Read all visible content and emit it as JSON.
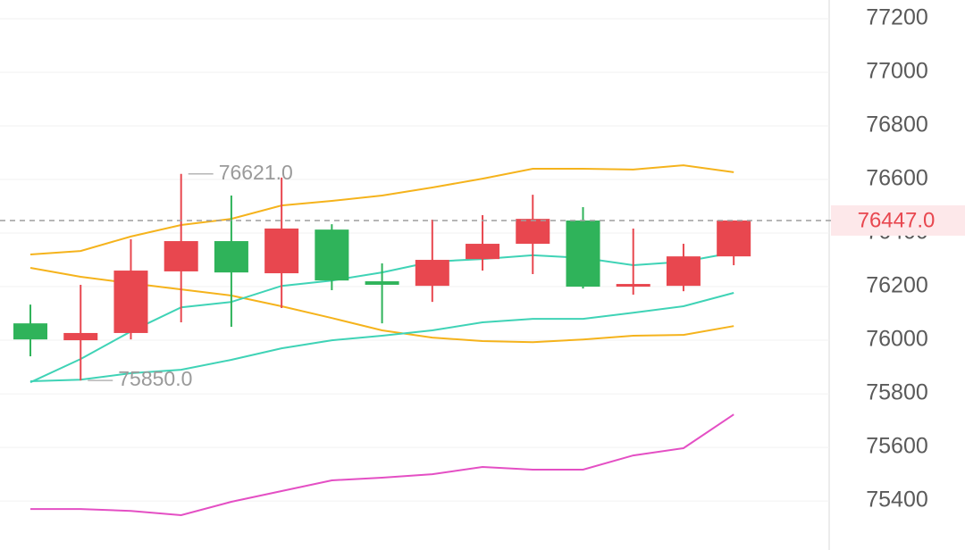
{
  "chart_data": {
    "type": "candlestick",
    "x": [
      1,
      2,
      3,
      4,
      5,
      6,
      7,
      8,
      9,
      10,
      11,
      12,
      13,
      14,
      15
    ],
    "xlim": [
      0.395,
      16.9
    ],
    "open": [
      76063,
      76000,
      76027,
      76257,
      76370,
      76250,
      76413,
      76220,
      76203,
      76303,
      76360,
      76447,
      76200,
      76203,
      76313
    ],
    "high": [
      76133,
      76207,
      76377,
      76621,
      76540,
      76607,
      76433,
      76287,
      76450,
      76467,
      76543,
      76497,
      76417,
      76360,
      76447
    ],
    "low": [
      75940,
      75850,
      76003,
      76067,
      76050,
      76120,
      76187,
      76063,
      76143,
      76260,
      76247,
      76193,
      76170,
      76183,
      76280
    ],
    "close": [
      76003,
      76027,
      76260,
      76370,
      76253,
      76417,
      76223,
      76207,
      76300,
      76360,
      76453,
      76200,
      76210,
      76313,
      76447
    ],
    "up_color": "#e8474f",
    "down_color": "#2fb35a",
    "series": [
      {
        "color": "#f5b31c",
        "values": [
          76320,
          76333,
          76387,
          76430,
          76453,
          76503,
          76520,
          76540,
          76570,
          76603,
          76640,
          76640,
          76637,
          76653,
          76627
        ]
      },
      {
        "color": "#f5b31c",
        "values": [
          76270,
          76237,
          76213,
          76190,
          76167,
          76127,
          76083,
          76037,
          76010,
          75997,
          75993,
          76003,
          76017,
          76020,
          76053
        ]
      },
      {
        "color": "#3fd3b6",
        "values": [
          75843,
          75930,
          76033,
          76123,
          76143,
          76203,
          76223,
          76253,
          76293,
          76303,
          76317,
          76307,
          76280,
          76293,
          76327
        ]
      },
      {
        "color": "#3fd3b6",
        "values": [
          75847,
          75853,
          75877,
          75890,
          75927,
          75970,
          76000,
          76017,
          76037,
          76067,
          76080,
          76080,
          76103,
          76127,
          76177
        ]
      },
      {
        "color": "#e44fc4",
        "values": [
          75370,
          75370,
          75363,
          75347,
          75397,
          75437,
          75477,
          75487,
          75500,
          75527,
          75517,
          75517,
          75570,
          75597,
          75723
        ]
      }
    ],
    "ylim": [
      75217,
      77270
    ],
    "yticks": [
      75400,
      75600,
      75800,
      76000,
      76200,
      76400,
      76600,
      76800,
      77000,
      77200
    ],
    "grid": true,
    "annotations": [
      {
        "x": 4,
        "value": 76621,
        "label": "76621.0"
      },
      {
        "x": 2,
        "value": 75850,
        "label": "75850.0"
      }
    ],
    "last_price": {
      "value": 76447,
      "label": "76447.0"
    }
  }
}
